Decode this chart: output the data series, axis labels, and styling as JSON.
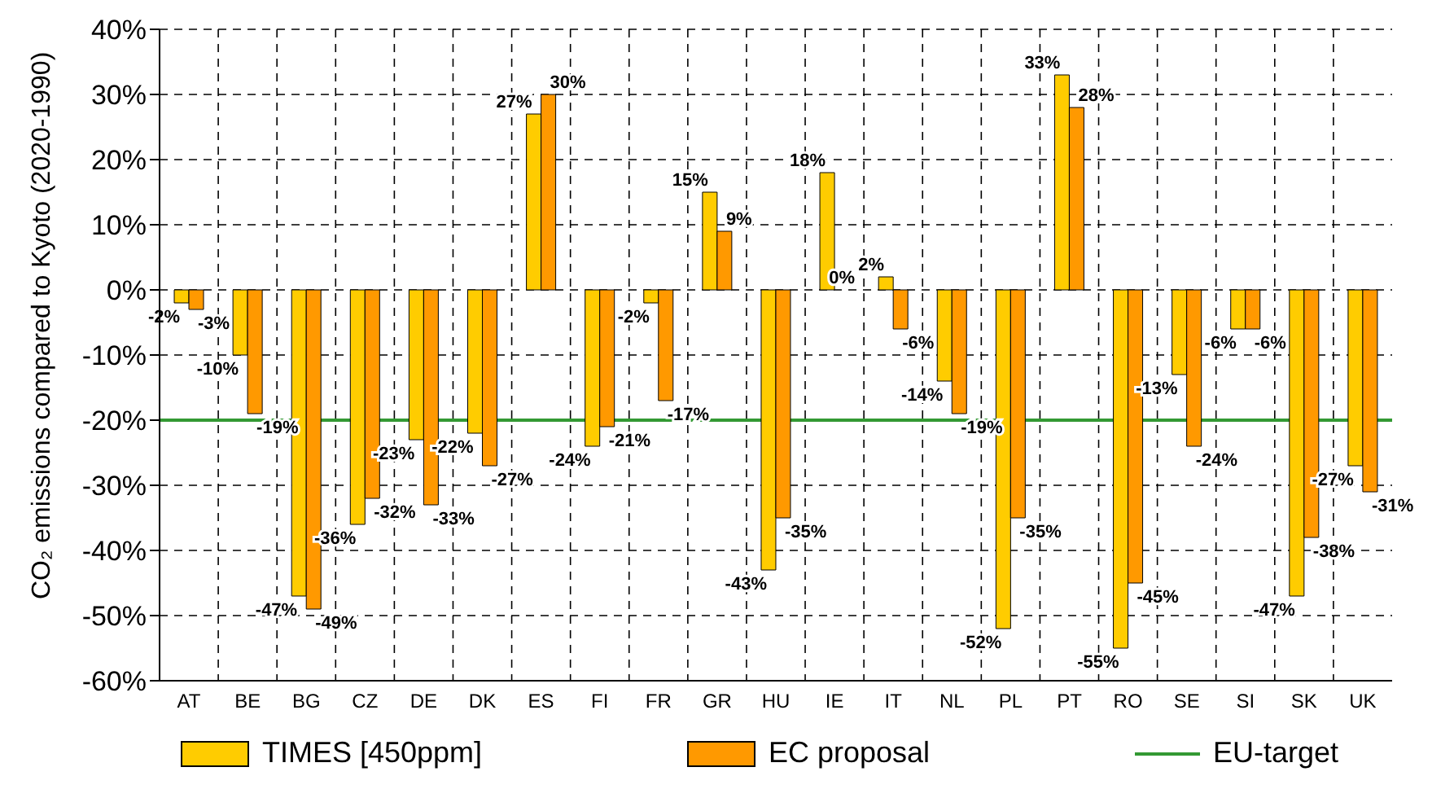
{
  "chart_data": {
    "type": "bar",
    "ylabel": "CO₂ emissions compared to Kyoto (2020-1990)",
    "categories": [
      "AT",
      "BE",
      "BG",
      "CZ",
      "DE",
      "DK",
      "ES",
      "FI",
      "FR",
      "GR",
      "HU",
      "IE",
      "IT",
      "NL",
      "PL",
      "PT",
      "RO",
      "SE",
      "SI",
      "SK",
      "UK"
    ],
    "series": [
      {
        "name": "TIMES [450ppm]",
        "color": "#ffcc00",
        "values": [
          -2,
          -10,
          -47,
          -36,
          -23,
          -22,
          27,
          -24,
          -2,
          15,
          -43,
          18,
          2,
          -14,
          -52,
          33,
          -55,
          -13,
          -6,
          -47,
          -27
        ],
        "value_labels": [
          "-2%",
          "-10%",
          "-47%",
          "-36%",
          "-23%",
          "-22%",
          "27%",
          "-24%",
          "-2%",
          "15%",
          "-43%",
          "18%",
          "2%",
          "-14%",
          "-52%",
          "33%",
          "-55%",
          "-13%",
          "-6%",
          "-47%",
          "-27%"
        ]
      },
      {
        "name": "EC proposal",
        "color": "#ff9900",
        "values": [
          -3,
          -19,
          -49,
          -32,
          -33,
          -27,
          30,
          -21,
          -17,
          9,
          -35,
          0,
          -6,
          -19,
          -35,
          28,
          -45,
          -24,
          -6,
          -38,
          -31
        ],
        "value_labels": [
          "-3%",
          "-19%",
          "-49%",
          "-32%",
          "-33%",
          "-27%",
          "30%",
          "-21%",
          "-17%",
          "9%",
          "-35%",
          "0%",
          "-6%",
          "-19%",
          "-35%",
          "28%",
          "-45%",
          "-24%",
          "-6%",
          "-38%",
          "-31%"
        ]
      }
    ],
    "ylim": [
      -60,
      40
    ],
    "yticks": [
      {
        "value": -60,
        "label": "-60%"
      },
      {
        "value": -50,
        "label": "-50%"
      },
      {
        "value": -40,
        "label": "-40%"
      },
      {
        "value": -30,
        "label": "-30%"
      },
      {
        "value": -20,
        "label": "-20%"
      },
      {
        "value": -10,
        "label": "-10%"
      },
      {
        "value": 0,
        "label": "0%"
      },
      {
        "value": 10,
        "label": "10%"
      },
      {
        "value": 20,
        "label": "20%"
      },
      {
        "value": 30,
        "label": "30%"
      },
      {
        "value": 40,
        "label": "40%"
      }
    ],
    "ref_lines": [
      {
        "axis": "y",
        "value": -20,
        "label": "EU-target",
        "color": "#339933"
      }
    ],
    "grid": true,
    "legend": "bottom"
  }
}
